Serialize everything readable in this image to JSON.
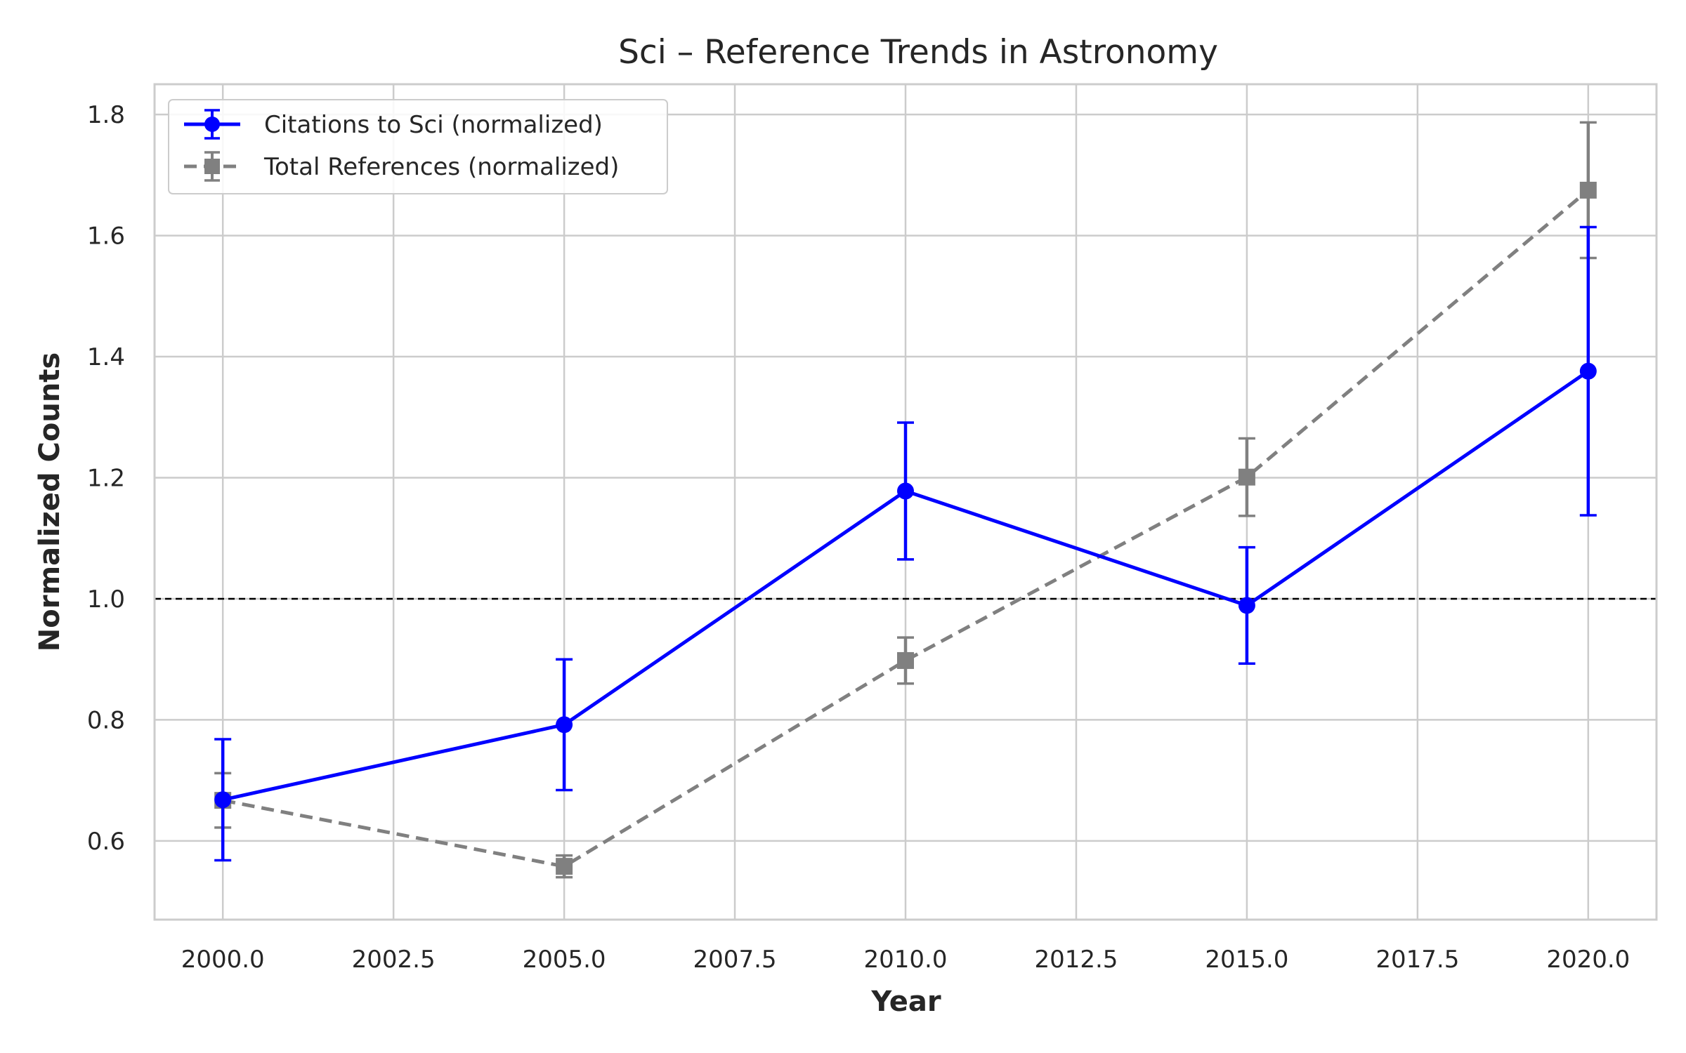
{
  "chart_data": {
    "type": "line",
    "title": "Sci – Reference Trends in Astronomy",
    "xlabel": "Year",
    "ylabel": "Normalized Counts",
    "xlim": [
      1999.0,
      2021.0
    ],
    "ylim": [
      0.47,
      1.85
    ],
    "xticks": [
      2000.0,
      2002.5,
      2005.0,
      2007.5,
      2010.0,
      2012.5,
      2015.0,
      2017.5,
      2020.0
    ],
    "xtick_labels": [
      "2000.0",
      "2002.5",
      "2005.0",
      "2007.5",
      "2010.0",
      "2012.5",
      "2015.0",
      "2017.5",
      "2020.0"
    ],
    "yticks": [
      0.6,
      0.8,
      1.0,
      1.2,
      1.4,
      1.6,
      1.8
    ],
    "ytick_labels": [
      "0.6",
      "0.8",
      "1.0",
      "1.2",
      "1.4",
      "1.6",
      "1.8"
    ],
    "grid": true,
    "legend_position": "top-left",
    "reference_line": {
      "y": 1.0,
      "style": "dashed",
      "color": "#000000"
    },
    "x": [
      2000,
      2005,
      2010,
      2015,
      2020
    ],
    "series": [
      {
        "name": "Citations to Sci (normalized)",
        "values": [
          0.668,
          0.792,
          1.178,
          0.989,
          1.376
        ],
        "errors": [
          0.1,
          0.108,
          0.113,
          0.096,
          0.238
        ],
        "color": "#0000ff",
        "marker": "circle",
        "line_style": "solid"
      },
      {
        "name": "Total References (normalized)",
        "values": [
          0.667,
          0.558,
          0.898,
          1.201,
          1.675
        ],
        "errors": [
          0.045,
          0.018,
          0.038,
          0.064,
          0.112
        ],
        "color": "#808080",
        "marker": "square",
        "line_style": "dashed"
      }
    ]
  }
}
